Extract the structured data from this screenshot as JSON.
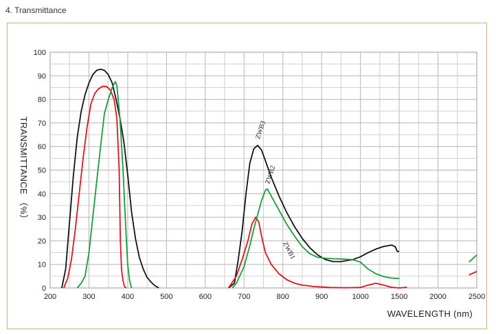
{
  "page": {
    "section_title": "4. Transmittance"
  },
  "chart_data": {
    "type": "line",
    "ylabel": "TRANSMITTANCE （%）",
    "xlabel": "WAVELENGTH (nm)",
    "ylim": [
      0,
      100
    ],
    "y_ticks": [
      0,
      10,
      20,
      30,
      40,
      50,
      60,
      70,
      80,
      90,
      100
    ],
    "x_ticks": [
      "200",
      "300",
      "400",
      "500",
      "600",
      "700",
      "800",
      "900",
      "1000",
      "1500",
      "2000",
      "2500"
    ],
    "x_axis_note": "piecewise scale: 200–900 nm linear, then 900, 1000, 1500, 2000, 2500 at equal spacing",
    "grid": true,
    "colors": {
      "ZWB1": "#e0111b",
      "ZWB2": "#1a9a3a",
      "ZWB3": "#111111"
    },
    "series": [
      {
        "name": "ZWB3",
        "label": "ZWB3",
        "points": [
          [
            230,
            0
          ],
          [
            240,
            8
          ],
          [
            250,
            28
          ],
          [
            260,
            48
          ],
          [
            270,
            64
          ],
          [
            280,
            75
          ],
          [
            290,
            82
          ],
          [
            300,
            87
          ],
          [
            310,
            90.5
          ],
          [
            320,
            92.3
          ],
          [
            330,
            92.8
          ],
          [
            340,
            92.3
          ],
          [
            350,
            90.5
          ],
          [
            360,
            87
          ],
          [
            370,
            80
          ],
          [
            380,
            72
          ],
          [
            390,
            62
          ],
          [
            400,
            48
          ],
          [
            410,
            32
          ],
          [
            420,
            21
          ],
          [
            430,
            13
          ],
          [
            440,
            8
          ],
          [
            450,
            4.5
          ],
          [
            460,
            2.5
          ],
          [
            470,
            1
          ],
          [
            480,
            0
          ],
          [
            660,
            0
          ],
          [
            675,
            2
          ],
          [
            685,
            12
          ],
          [
            695,
            24
          ],
          [
            705,
            40
          ],
          [
            715,
            53
          ],
          [
            725,
            59
          ],
          [
            735,
            60.5
          ],
          [
            745,
            58.5
          ],
          [
            755,
            54
          ],
          [
            770,
            47
          ],
          [
            790,
            39
          ],
          [
            810,
            32
          ],
          [
            830,
            26
          ],
          [
            850,
            21
          ],
          [
            870,
            17
          ],
          [
            890,
            14
          ],
          [
            910,
            12
          ],
          [
            930,
            11.2
          ],
          [
            950,
            11.2
          ],
          [
            980,
            12
          ],
          [
            1000,
            13.2
          ],
          [
            1100,
            15
          ],
          [
            1200,
            16.5
          ],
          [
            1300,
            17.6
          ],
          [
            1400,
            18.2
          ],
          [
            1450,
            17.5
          ],
          [
            1475,
            15.5
          ],
          [
            1500,
            15.5
          ],
          [
            1700,
            16.5
          ],
          [
            2000,
            17.5
          ],
          [
            2300,
            18.5
          ],
          [
            2500,
            20
          ]
        ]
      },
      {
        "name": "ZWB1",
        "label": "ZWB1",
        "points": [
          [
            235,
            0
          ],
          [
            245,
            4
          ],
          [
            255,
            12
          ],
          [
            265,
            25
          ],
          [
            275,
            40
          ],
          [
            285,
            55
          ],
          [
            295,
            68
          ],
          [
            305,
            78
          ],
          [
            315,
            82.5
          ],
          [
            325,
            84.5
          ],
          [
            335,
            85.5
          ],
          [
            345,
            85.5
          ],
          [
            355,
            84
          ],
          [
            365,
            80
          ],
          [
            372,
            72
          ],
          [
            378,
            50
          ],
          [
            381,
            20
          ],
          [
            384,
            8
          ],
          [
            388,
            3
          ],
          [
            392,
            0.5
          ],
          [
            396,
            0
          ],
          [
            660,
            0
          ],
          [
            680,
            5
          ],
          [
            695,
            12
          ],
          [
            710,
            20
          ],
          [
            720,
            27
          ],
          [
            730,
            30
          ],
          [
            738,
            28
          ],
          [
            745,
            22
          ],
          [
            755,
            15
          ],
          [
            770,
            10
          ],
          [
            790,
            6
          ],
          [
            810,
            3.5
          ],
          [
            830,
            2
          ],
          [
            850,
            1.2
          ],
          [
            880,
            0.6
          ],
          [
            920,
            0.2
          ],
          [
            960,
            0.1
          ],
          [
            1000,
            0.2
          ],
          [
            1100,
            1.2
          ],
          [
            1200,
            2
          ],
          [
            1300,
            1.2
          ],
          [
            1400,
            0.3
          ],
          [
            1500,
            0
          ],
          [
            1600,
            0.3
          ],
          [
            1800,
            1.3
          ],
          [
            2000,
            2
          ],
          [
            2200,
            3.5
          ],
          [
            2400,
            5.5
          ],
          [
            2500,
            7
          ]
        ]
      },
      {
        "name": "ZWB2",
        "label": "ZWB2",
        "points": [
          [
            270,
            0
          ],
          [
            280,
            2
          ],
          [
            290,
            5
          ],
          [
            300,
            15
          ],
          [
            310,
            30
          ],
          [
            320,
            45
          ],
          [
            330,
            60
          ],
          [
            340,
            74
          ],
          [
            350,
            80
          ],
          [
            360,
            85
          ],
          [
            368,
            87.5
          ],
          [
            372,
            86
          ],
          [
            380,
            72
          ],
          [
            388,
            50
          ],
          [
            395,
            25
          ],
          [
            400,
            10
          ],
          [
            405,
            3
          ],
          [
            410,
            0
          ],
          [
            670,
            0
          ],
          [
            680,
            2
          ],
          [
            700,
            9
          ],
          [
            715,
            18
          ],
          [
            725,
            25
          ],
          [
            735,
            31
          ],
          [
            745,
            37
          ],
          [
            755,
            41.5
          ],
          [
            760,
            42
          ],
          [
            770,
            39
          ],
          [
            790,
            33
          ],
          [
            810,
            27
          ],
          [
            830,
            22
          ],
          [
            850,
            17.5
          ],
          [
            870,
            14.5
          ],
          [
            890,
            13
          ],
          [
            910,
            12.6
          ],
          [
            930,
            12.4
          ],
          [
            950,
            12.3
          ],
          [
            980,
            12
          ],
          [
            1000,
            11
          ],
          [
            1100,
            8
          ],
          [
            1200,
            6
          ],
          [
            1300,
            4.8
          ],
          [
            1400,
            4.2
          ],
          [
            1500,
            4
          ],
          [
            1700,
            4.3
          ],
          [
            2000,
            5
          ],
          [
            2200,
            7
          ],
          [
            2400,
            11
          ],
          [
            2500,
            14
          ]
        ]
      }
    ],
    "annotations": [
      {
        "series": "ZWB3",
        "text": "ZWB3",
        "x": 740,
        "y": 63
      },
      {
        "series": "ZWB2",
        "text": "ZWB2",
        "x": 765,
        "y": 44
      },
      {
        "series": "ZWB1",
        "text": "ZWB1",
        "x": 800,
        "y": 19
      }
    ]
  }
}
